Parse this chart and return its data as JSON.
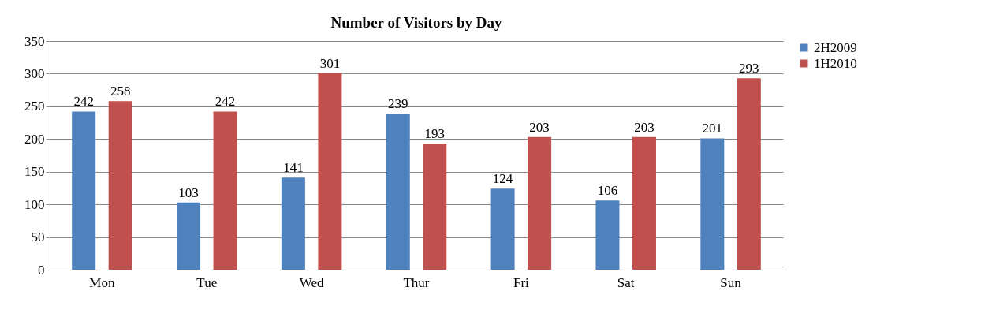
{
  "chart_data": {
    "type": "bar",
    "title": "Number of Visitors by Day",
    "categories": [
      "Mon",
      "Tue",
      "Wed",
      "Thur",
      "Fri",
      "Sat",
      "Sun"
    ],
    "series": [
      {
        "name": "2H2009",
        "color": "#4f81bd",
        "values": [
          242,
          103,
          141,
          239,
          124,
          106,
          201
        ]
      },
      {
        "name": "1H2010",
        "color": "#c0504d",
        "values": [
          258,
          242,
          301,
          193,
          203,
          203,
          293
        ]
      }
    ],
    "ylim": [
      0,
      350
    ],
    "yticks": [
      0,
      50,
      100,
      150,
      200,
      250,
      300,
      350
    ],
    "grid": "y",
    "legend": "right",
    "data_labels": true
  }
}
